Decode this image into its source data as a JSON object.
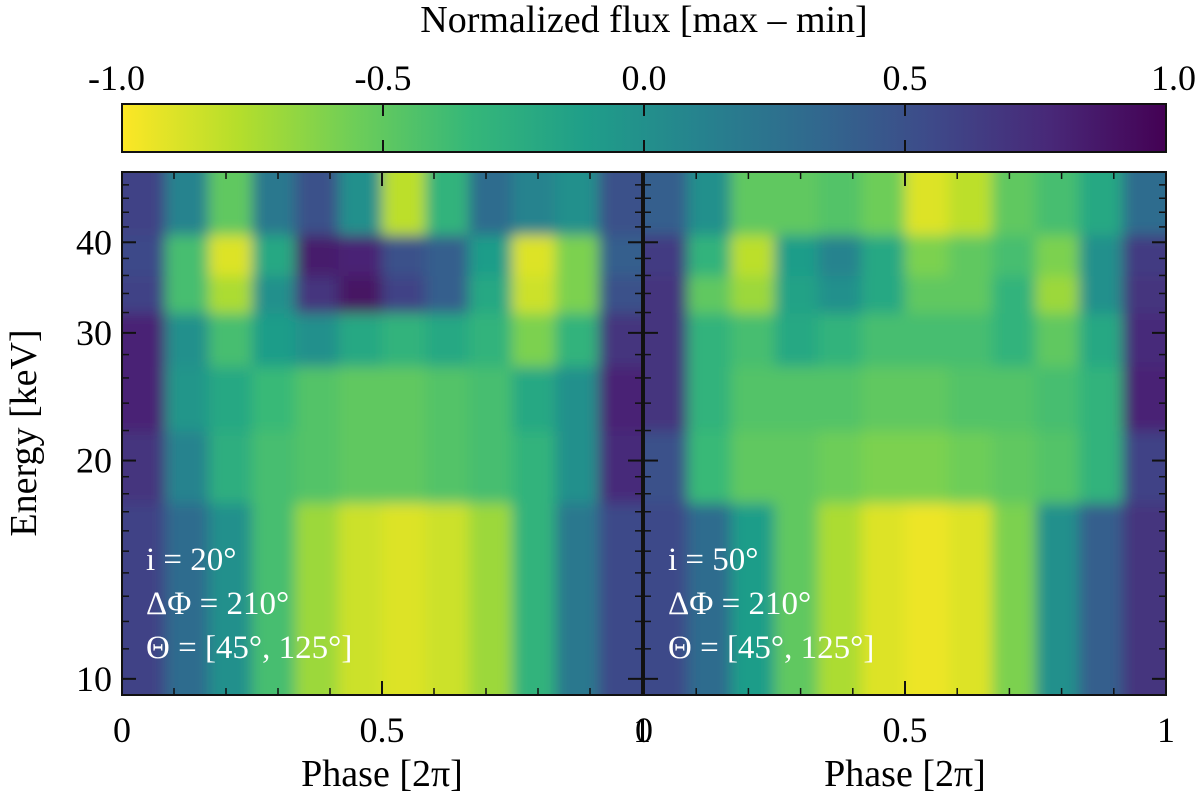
{
  "chart_data": {
    "type": "heatmap",
    "colorbar": {
      "title": "Normalized flux [max – min]",
      "range": [
        -1.0,
        1.0
      ],
      "tick_values": [
        -1.0,
        -0.5,
        0.0,
        0.5,
        1.0
      ],
      "tick_labels": [
        "-1.0",
        "-0.5",
        "0.0",
        "0.5",
        "1.0"
      ],
      "colormap": "viridis_r",
      "colors": [
        "#fde725",
        "#b5de2b",
        "#6ece58",
        "#35b779",
        "#1f9e89",
        "#26828e",
        "#31688e",
        "#3e4989",
        "#482878",
        "#440154"
      ]
    },
    "panels": [
      {
        "id": "left",
        "xlabel": "Phase [2π]",
        "ylabel": "Energy [keV]",
        "xlim": [
          0,
          1
        ],
        "ylim": [
          9.5,
          50
        ],
        "y_scale": "log",
        "x_tick_values": [
          0,
          0.5,
          1
        ],
        "x_tick_labels": [
          "0",
          "0.5",
          "1"
        ],
        "y_tick_values": [
          10,
          20,
          30,
          40
        ],
        "y_tick_labels": [
          "10",
          "20",
          "30",
          "40"
        ],
        "annotation_lines": [
          "i = 20°",
          "ΔΦ = 210°",
          "Θ = [45°, 125°]"
        ],
        "grid": {
          "phase_bins": 12,
          "energy_bands": [
            "9.5–17.5",
            "17.5–22",
            "22–27",
            "27–32",
            "32–36",
            "36–41",
            "41–50"
          ],
          "values": [
            [
              0.6,
              0.3,
              0.0,
              -0.4,
              -0.7,
              -0.85,
              -0.9,
              -0.85,
              -0.7,
              -0.3,
              0.2,
              0.55
            ],
            [
              0.7,
              0.1,
              -0.25,
              -0.4,
              -0.45,
              -0.5,
              -0.5,
              -0.45,
              -0.4,
              -0.3,
              0.0,
              0.75
            ],
            [
              0.8,
              -0.05,
              -0.2,
              -0.35,
              -0.45,
              -0.5,
              -0.5,
              -0.45,
              -0.4,
              -0.2,
              0.0,
              0.8
            ],
            [
              0.8,
              0.0,
              -0.4,
              -0.1,
              0.0,
              -0.2,
              -0.3,
              -0.2,
              -0.3,
              -0.6,
              -0.3,
              0.7
            ],
            [
              0.6,
              -0.4,
              -0.75,
              0.0,
              0.7,
              0.9,
              0.6,
              0.4,
              -0.2,
              -0.85,
              -0.6,
              0.5
            ],
            [
              0.55,
              -0.4,
              -0.9,
              -0.2,
              0.85,
              0.8,
              0.5,
              0.4,
              -0.1,
              -0.9,
              -0.6,
              0.4
            ],
            [
              0.6,
              0.1,
              -0.5,
              0.2,
              0.5,
              0.0,
              -0.8,
              -0.3,
              0.3,
              0.1,
              0.0,
              0.5
            ]
          ]
        }
      },
      {
        "id": "right",
        "xlabel": "Phase [2π]",
        "ylabel": "",
        "xlim": [
          0,
          1
        ],
        "ylim": [
          9.5,
          50
        ],
        "y_scale": "log",
        "x_tick_values": [
          0,
          0.5,
          1
        ],
        "x_tick_labels": [
          "0",
          "0.5",
          "1"
        ],
        "y_tick_values": [
          10,
          20,
          30,
          40
        ],
        "y_tick_labels": [
          "",
          "",
          "",
          ""
        ],
        "annotation_lines": [
          "i = 50°",
          "ΔΦ = 210°",
          "Θ = [45°, 125°]"
        ],
        "grid": {
          "phase_bins": 12,
          "energy_bands": [
            "9.5–17.5",
            "17.5–22",
            "22–27",
            "27–32",
            "32–36",
            "36–41",
            "41–50"
          ],
          "values": [
            [
              0.55,
              0.3,
              -0.1,
              -0.5,
              -0.75,
              -0.9,
              -0.95,
              -0.9,
              -0.6,
              0.0,
              0.4,
              0.7
            ],
            [
              0.5,
              -0.35,
              -0.5,
              -0.5,
              -0.55,
              -0.6,
              -0.6,
              -0.55,
              -0.5,
              -0.45,
              -0.3,
              0.6
            ],
            [
              0.7,
              -0.3,
              -0.45,
              -0.45,
              -0.45,
              -0.5,
              -0.5,
              -0.45,
              -0.45,
              -0.4,
              -0.3,
              0.8
            ],
            [
              0.7,
              -0.3,
              -0.4,
              -0.2,
              -0.3,
              -0.4,
              -0.4,
              -0.4,
              -0.3,
              -0.5,
              -0.2,
              0.75
            ],
            [
              0.7,
              -0.5,
              -0.7,
              -0.15,
              0.0,
              -0.2,
              -0.5,
              -0.5,
              -0.3,
              -0.7,
              0.0,
              0.7
            ],
            [
              0.65,
              -0.3,
              -0.8,
              -0.1,
              0.1,
              -0.2,
              -0.6,
              -0.5,
              -0.4,
              -0.6,
              0.0,
              0.65
            ],
            [
              0.4,
              0.0,
              -0.5,
              -0.5,
              -0.45,
              -0.55,
              -0.9,
              -0.8,
              -0.5,
              -0.4,
              -0.2,
              0.3
            ]
          ]
        }
      }
    ]
  }
}
